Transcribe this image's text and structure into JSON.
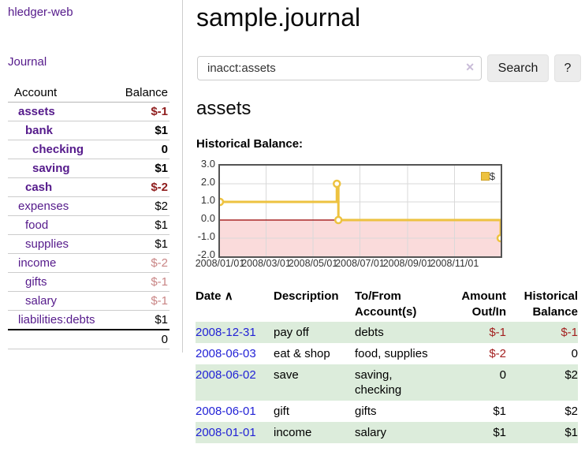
{
  "colors": {
    "link_purple": "#551a8b",
    "link_blue": "#1515e0",
    "negative_dark": "#8f1d1d",
    "negative": "#a32020",
    "negative_pale": "#c98585",
    "row_stripe_green": "#dcecdb",
    "chart_gold": "#edc240",
    "chart_zero_line": "#990000",
    "chart_negative_fill": "#fadbdb",
    "chart_grid": "#d9d9d9",
    "chart_border": "#545454"
  },
  "app": {
    "brand": "hledger-web",
    "nav_journal": "Journal"
  },
  "sidebar": {
    "columns": [
      "Account",
      "Balance"
    ],
    "accounts": [
      {
        "name": "assets",
        "balance": "$-1"
      },
      {
        "name": "bank",
        "balance": "$1"
      },
      {
        "name": "checking",
        "balance": "0"
      },
      {
        "name": "saving",
        "balance": "$1"
      },
      {
        "name": "cash",
        "balance": "$-2"
      },
      {
        "name": "expenses",
        "balance": "$2"
      },
      {
        "name": "food",
        "balance": "$1"
      },
      {
        "name": "supplies",
        "balance": "$1"
      },
      {
        "name": "income",
        "balance": "$-2"
      },
      {
        "name": "gifts",
        "balance": "$-1"
      },
      {
        "name": "salary",
        "balance": "$-1"
      },
      {
        "name": "liabilities:debts",
        "balance": "$1"
      }
    ],
    "total": "0"
  },
  "header": {
    "title": "sample.journal"
  },
  "search": {
    "value": "inacct:assets",
    "clear_icon": "✕",
    "button_label": "Search",
    "help_label": "?"
  },
  "account_view": {
    "heading": "assets",
    "chart_title": "Historical Balance:"
  },
  "chart_data": {
    "type": "line",
    "title": "Historical Balance:",
    "x_range": [
      "2008-01-01",
      "2008-12-31"
    ],
    "ylim": [
      -2,
      3
    ],
    "ytick_labels": [
      "3.0",
      "2.0",
      "1.0",
      "0.0",
      "-1.0",
      "-2.0"
    ],
    "ytick_values": [
      3,
      2,
      1,
      0,
      -1,
      -2
    ],
    "xticks": [
      "2008/01/01",
      "2008/03/01",
      "2008/05/01",
      "2008/07/01",
      "2008/09/01",
      "2008/11/01"
    ],
    "series": [
      {
        "name": "$",
        "color": "#edc240",
        "mode": "steps",
        "points": [
          [
            "2008-01-01",
            1
          ],
          [
            "2008-06-01",
            2
          ],
          [
            "2008-06-03",
            0
          ],
          [
            "2008-12-31",
            -1
          ]
        ]
      }
    ],
    "legend_position": "top-right",
    "grid": true
  },
  "register": {
    "headers": {
      "date": "Date",
      "description": "Description",
      "account": "To/From Account(s)",
      "amount": "Amount Out/In",
      "balance": "Historical Balance"
    },
    "sort_icon": "∧",
    "rows": [
      {
        "date": "2008-12-31",
        "description": "pay off",
        "account": "debts",
        "amount": "$-1",
        "balance": "$-1"
      },
      {
        "date": "2008-06-03",
        "description": "eat & shop",
        "account": "food, supplies",
        "amount": "$-2",
        "balance": "0"
      },
      {
        "date": "2008-06-02",
        "description": "save",
        "account": "saving, checking",
        "amount": "0",
        "balance": "$2"
      },
      {
        "date": "2008-06-01",
        "description": "gift",
        "account": "gifts",
        "amount": "$1",
        "balance": "$2"
      },
      {
        "date": "2008-01-01",
        "description": "income",
        "account": "salary",
        "amount": "$1",
        "balance": "$1"
      }
    ]
  }
}
